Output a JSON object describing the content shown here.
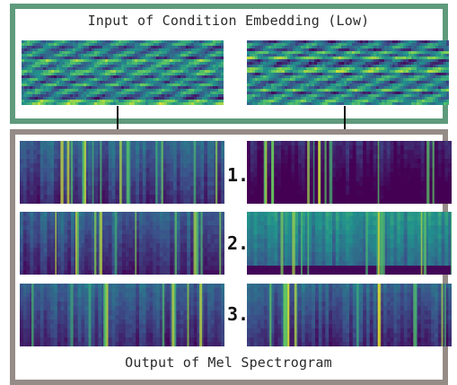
{
  "top_panel": {
    "title": "Input of Condition Embedding (Low)",
    "embeddings": [
      {
        "name": "embedding-left",
        "palette": "viridis"
      },
      {
        "name": "embedding-right",
        "palette": "viridis"
      }
    ]
  },
  "bottom_panel": {
    "title": "Output of Mel Spectrogram",
    "rows": [
      {
        "label": "1."
      },
      {
        "label": "2."
      },
      {
        "label": "3."
      }
    ]
  },
  "colors": {
    "top_border": "#5f9a7c",
    "bottom_border": "#958b87",
    "arrow": "#111111"
  }
}
